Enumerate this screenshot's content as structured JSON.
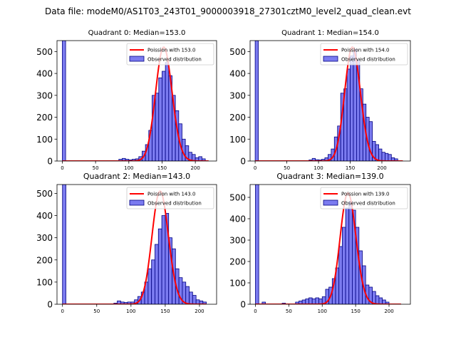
{
  "suptitle": "Data file: modeM0/AS1T03_243T01_9000003918_27301cztM0_level2_quad_clean.evt",
  "colors": {
    "bar_fill": "#7b7bf0",
    "bar_edge": "#000080",
    "poisson_line": "#ff0000"
  },
  "chart_data": [
    {
      "type": "bar",
      "title": "Quadrant 0: Median=153.0",
      "xlim": [
        -8,
        232
      ],
      "ylim": [
        0,
        550
      ],
      "xticks": [
        0,
        50,
        100,
        150,
        200
      ],
      "yticks": [
        0,
        100,
        200,
        300,
        400,
        500
      ],
      "bin_width": 5,
      "histogram": [
        [
          0,
          550
        ],
        [
          85,
          8
        ],
        [
          90,
          12
        ],
        [
          95,
          8
        ],
        [
          100,
          5
        ],
        [
          105,
          8
        ],
        [
          110,
          10
        ],
        [
          115,
          20
        ],
        [
          120,
          45
        ],
        [
          125,
          75
        ],
        [
          130,
          140
        ],
        [
          135,
          300
        ],
        [
          140,
          310
        ],
        [
          145,
          380
        ],
        [
          150,
          410
        ],
        [
          155,
          450
        ],
        [
          160,
          390
        ],
        [
          165,
          300
        ],
        [
          170,
          230
        ],
        [
          175,
          170
        ],
        [
          180,
          100
        ],
        [
          185,
          70
        ],
        [
          190,
          40
        ],
        [
          195,
          30
        ],
        [
          200,
          15
        ],
        [
          205,
          20
        ],
        [
          210,
          10
        ]
      ],
      "poisson_mean": 153.0,
      "poisson_peak": 520,
      "poisson_x_range": [
        0,
        220
      ],
      "legend": [
        "Poission with 153.0",
        "Observed distribution"
      ]
    },
    {
      "type": "bar",
      "title": "Quadrant 1: Median=154.0",
      "xlim": [
        -8,
        245
      ],
      "ylim": [
        0,
        550
      ],
      "xticks": [
        0,
        50,
        100,
        150,
        200
      ],
      "yticks": [
        0,
        100,
        200,
        300,
        400,
        500
      ],
      "bin_width": 5,
      "histogram": [
        [
          0,
          550
        ],
        [
          85,
          5
        ],
        [
          90,
          12
        ],
        [
          95,
          6
        ],
        [
          100,
          5
        ],
        [
          105,
          8
        ],
        [
          110,
          15
        ],
        [
          115,
          30
        ],
        [
          120,
          55
        ],
        [
          125,
          110
        ],
        [
          130,
          160
        ],
        [
          135,
          310
        ],
        [
          140,
          330
        ],
        [
          145,
          420
        ],
        [
          150,
          480
        ],
        [
          155,
          510
        ],
        [
          160,
          460
        ],
        [
          165,
          330
        ],
        [
          170,
          260
        ],
        [
          175,
          200
        ],
        [
          180,
          180
        ],
        [
          185,
          90
        ],
        [
          190,
          75
        ],
        [
          195,
          55
        ],
        [
          200,
          40
        ],
        [
          205,
          35
        ],
        [
          210,
          30
        ],
        [
          215,
          15
        ],
        [
          220,
          10
        ]
      ],
      "poisson_mean": 154.0,
      "poisson_peak": 520,
      "poisson_x_range": [
        0,
        233
      ],
      "legend": [
        "Poission with 154.0",
        "Observed distribution"
      ]
    },
    {
      "type": "bar",
      "title": "Quadrant 2: Median=143.0",
      "xlim": [
        -8,
        225
      ],
      "ylim": [
        0,
        540
      ],
      "xticks": [
        0,
        50,
        100,
        150,
        200
      ],
      "yticks": [
        0,
        100,
        200,
        300,
        400,
        500
      ],
      "bin_width": 5,
      "histogram": [
        [
          0,
          540
        ],
        [
          75,
          5
        ],
        [
          80,
          15
        ],
        [
          85,
          10
        ],
        [
          90,
          8
        ],
        [
          95,
          10
        ],
        [
          100,
          10
        ],
        [
          105,
          20
        ],
        [
          110,
          35
        ],
        [
          115,
          55
        ],
        [
          120,
          100
        ],
        [
          125,
          160
        ],
        [
          130,
          200
        ],
        [
          135,
          270
        ],
        [
          140,
          340
        ],
        [
          145,
          400
        ],
        [
          150,
          410
        ],
        [
          155,
          300
        ],
        [
          160,
          250
        ],
        [
          165,
          160
        ],
        [
          170,
          120
        ],
        [
          175,
          100
        ],
        [
          180,
          80
        ],
        [
          185,
          55
        ],
        [
          190,
          40
        ],
        [
          195,
          20
        ],
        [
          200,
          15
        ],
        [
          205,
          10
        ]
      ],
      "poisson_mean": 143.0,
      "poisson_peak": 510,
      "poisson_x_range": [
        0,
        210
      ],
      "legend": [
        "Poission with 143.0",
        "Observed distribution"
      ]
    },
    {
      "type": "bar",
      "title": "Quadrant 3: Median=139.0",
      "xlim": [
        -8,
        232
      ],
      "ylim": [
        0,
        560
      ],
      "xticks": [
        0,
        50,
        100,
        150,
        200
      ],
      "yticks": [
        0,
        100,
        200,
        300,
        400,
        500
      ],
      "bin_width": 5,
      "histogram": [
        [
          0,
          560
        ],
        [
          10,
          10
        ],
        [
          40,
          5
        ],
        [
          60,
          10
        ],
        [
          65,
          15
        ],
        [
          70,
          20
        ],
        [
          75,
          25
        ],
        [
          80,
          30
        ],
        [
          85,
          25
        ],
        [
          90,
          30
        ],
        [
          95,
          25
        ],
        [
          100,
          35
        ],
        [
          105,
          70
        ],
        [
          110,
          80
        ],
        [
          115,
          120
        ],
        [
          120,
          170
        ],
        [
          125,
          270
        ],
        [
          130,
          360
        ],
        [
          135,
          450
        ],
        [
          140,
          480
        ],
        [
          145,
          440
        ],
        [
          150,
          360
        ],
        [
          155,
          250
        ],
        [
          160,
          180
        ],
        [
          165,
          90
        ],
        [
          170,
          80
        ],
        [
          175,
          60
        ],
        [
          180,
          40
        ],
        [
          185,
          30
        ],
        [
          190,
          20
        ],
        [
          195,
          10
        ]
      ],
      "poisson_mean": 139.0,
      "poisson_peak": 520,
      "poisson_x_range": [
        0,
        218
      ],
      "legend": [
        "Poission with 139.0",
        "Observed distribution"
      ]
    }
  ]
}
